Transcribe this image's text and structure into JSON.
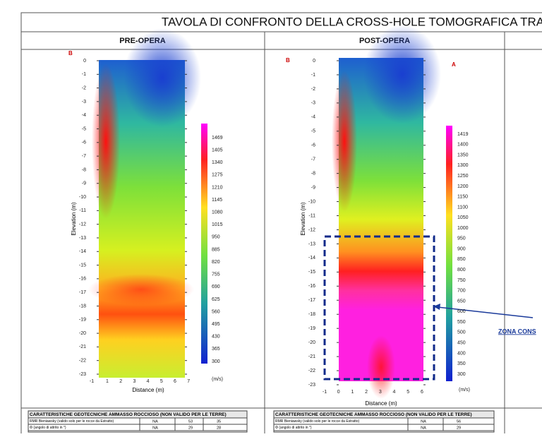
{
  "title": "TAVOLA DI CONFRONTO DELLA CROSS-HOLE TOMOGRAFICA TRA",
  "panels": [
    {
      "header": "PRE-OPERA",
      "marker_left": "B",
      "y_axis_title": "Elevation (m)",
      "x_axis_title": "Distance (m)",
      "y_ticks": [
        "0",
        "-1",
        "-2",
        "-3",
        "-4",
        "-5",
        "-6",
        "-7",
        "-8",
        "-9",
        "-10",
        "-11",
        "-12",
        "-13",
        "-14",
        "-15",
        "-16",
        "-17",
        "-18",
        "-19",
        "-20",
        "-21",
        "-22",
        "-23"
      ],
      "x_ticks": [
        "-1",
        "1",
        "2",
        "3",
        "4",
        "5",
        "6",
        "7"
      ],
      "colorbar_labels": [
        "1469",
        "1405",
        "1340",
        "1275",
        "1210",
        "1145",
        "1080",
        "1015",
        "950",
        "885",
        "820",
        "755",
        "690",
        "625",
        "560",
        "495",
        "430",
        "365",
        "300"
      ],
      "colorbar_unit": "(m/s)",
      "table": {
        "header": "CARATTERISTICHE GEOTECNICHE AMMASSO ROCCIOSO (NON VALIDO PER LE TERRE)",
        "rows": [
          [
            "RMR Bieniawsky (valido solo per le rocce da Estratto)",
            "NA",
            "53",
            "35"
          ],
          [
            "Φ (angolo di attrito in °)",
            "NA",
            "29",
            "28"
          ]
        ]
      }
    },
    {
      "header": "POST-OPERA",
      "marker_left": "B",
      "marker_right": "A",
      "y_axis_title": "Elevation (m)",
      "x_axis_title": "Distance (m)",
      "y_ticks": [
        "0",
        "-1",
        "-2",
        "-3",
        "-4",
        "-5",
        "-6",
        "-7",
        "-8",
        "-9",
        "-10",
        "-11",
        "-12",
        "-13",
        "-14",
        "-15",
        "-16",
        "-17",
        "-18",
        "-19",
        "-20",
        "-21",
        "-22",
        "-23"
      ],
      "x_ticks": [
        "-1",
        "0",
        "1",
        "2",
        "3",
        "4",
        "5",
        "6"
      ],
      "colorbar_labels": [
        "1419",
        "1400",
        "1350",
        "1300",
        "1250",
        "1200",
        "1150",
        "1100",
        "1050",
        "1000",
        "950",
        "900",
        "850",
        "800",
        "750",
        "700",
        "650",
        "600",
        "550",
        "500",
        "450",
        "400",
        "350",
        "300"
      ],
      "colorbar_unit": "(m/s)",
      "table": {
        "header": "CARATTERISTICHE GEOTECNICHE AMMASSO ROCCIOSO (NON VALIDO PER LE TERRE)",
        "rows": [
          [
            "RMR Bieniawsky (valido solo per le rocce da Estratto)",
            "NA",
            "56"
          ],
          [
            "Φ (angolo di attrito in °)",
            "NA",
            "29"
          ]
        ]
      }
    }
  ],
  "callout": "ZONA CONS"
}
